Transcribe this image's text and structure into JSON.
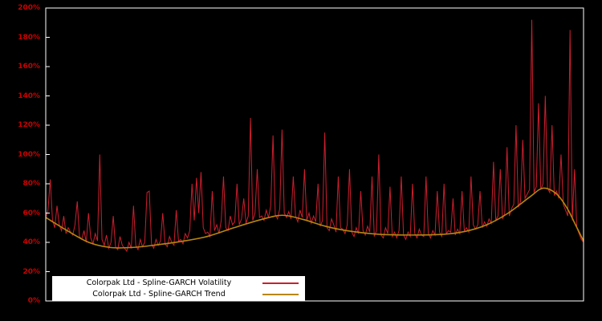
{
  "chart": {
    "background_color": "#000000",
    "frame_color": "#ffffff",
    "axis_label_color": "#cc0000"
  },
  "chart_data": {
    "type": "line",
    "title": "",
    "xlabel": "",
    "ylabel": "",
    "ylim": [
      0,
      200
    ],
    "grid": false,
    "legend_position": "bottom-left",
    "yticks": [
      {
        "value": 0,
        "label": "0%"
      },
      {
        "value": 20,
        "label": "20%"
      },
      {
        "value": 40,
        "label": "40%"
      },
      {
        "value": 60,
        "label": "60%"
      },
      {
        "value": 80,
        "label": "80%"
      },
      {
        "value": 100,
        "label": "100%"
      },
      {
        "value": 120,
        "label": "120%"
      },
      {
        "value": 140,
        "label": "140%"
      },
      {
        "value": 160,
        "label": "160%"
      },
      {
        "value": 180,
        "label": "180%"
      },
      {
        "value": 200,
        "label": "200%"
      }
    ],
    "series": [
      {
        "name": "Colorpak Ltd - Spline-GARCH Volatility",
        "color": "#cc1f2e",
        "values": [
          57,
          62,
          83,
          55,
          50,
          65,
          52,
          48,
          58,
          46,
          50,
          47,
          45,
          52,
          68,
          44,
          42,
          48,
          40,
          60,
          43,
          39,
          46,
          41,
          100,
          42,
          38,
          45,
          36,
          40,
          58,
          37,
          35,
          44,
          38,
          36,
          34,
          40,
          36,
          65,
          38,
          35,
          42,
          37,
          40,
          74,
          75,
          39,
          36,
          42,
          38,
          41,
          60,
          39,
          37,
          44,
          40,
          38,
          62,
          41,
          42,
          39,
          46,
          43,
          48,
          80,
          55,
          84,
          60,
          88,
          50,
          46,
          47,
          44,
          75,
          48,
          52,
          46,
          55,
          85,
          50,
          48,
          58,
          52,
          54,
          80,
          52,
          56,
          70,
          53,
          58,
          125,
          55,
          60,
          90,
          57,
          58,
          55,
          62,
          57,
          65,
          113,
          59,
          56,
          63,
          117,
          60,
          57,
          61,
          56,
          85,
          58,
          54,
          62,
          57,
          90,
          55,
          60,
          53,
          58,
          54,
          80,
          51,
          55,
          115,
          50,
          48,
          56,
          52,
          47,
          85,
          50,
          49,
          46,
          52,
          90,
          47,
          44,
          50,
          46,
          75,
          48,
          45,
          51,
          47,
          85,
          44,
          48,
          100,
          45,
          43,
          50,
          46,
          78,
          44,
          47,
          43,
          48,
          85,
          45,
          42,
          47,
          44,
          80,
          46,
          43,
          49,
          45,
          44,
          85,
          46,
          43,
          48,
          45,
          75,
          47,
          44,
          80,
          46,
          48,
          47,
          70,
          45,
          49,
          46,
          75,
          48,
          50,
          47,
          85,
          52,
          49,
          52,
          75,
          50,
          54,
          51,
          56,
          53,
          95,
          55,
          58,
          90,
          56,
          60,
          105,
          58,
          63,
          66,
          120,
          64,
          68,
          110,
          70,
          73,
          76,
          192,
          74,
          78,
          135,
          76,
          80,
          140,
          77,
          74,
          120,
          72,
          75,
          70,
          100,
          66,
          62,
          58,
          185,
          55,
          90,
          50,
          46,
          42,
          40
        ]
      },
      {
        "name": "Colorpak Ltd - Spline-GARCH Trend",
        "color": "#b8860b",
        "keypoints": [
          [
            0,
            57
          ],
          [
            0.04,
            48
          ],
          [
            0.08,
            40
          ],
          [
            0.12,
            36.5
          ],
          [
            0.16,
            36.5
          ],
          [
            0.2,
            38
          ],
          [
            0.25,
            40.5
          ],
          [
            0.3,
            44
          ],
          [
            0.35,
            50
          ],
          [
            0.4,
            55.5
          ],
          [
            0.44,
            58.5
          ],
          [
            0.48,
            55.5
          ],
          [
            0.52,
            51
          ],
          [
            0.56,
            48
          ],
          [
            0.62,
            45.5
          ],
          [
            0.68,
            45
          ],
          [
            0.74,
            45.5
          ],
          [
            0.78,
            47.5
          ],
          [
            0.82,
            52
          ],
          [
            0.86,
            60
          ],
          [
            0.9,
            71
          ],
          [
            0.925,
            77
          ],
          [
            0.95,
            73
          ],
          [
            0.97,
            63
          ],
          [
            0.985,
            52
          ],
          [
            1,
            41
          ]
        ]
      }
    ]
  }
}
